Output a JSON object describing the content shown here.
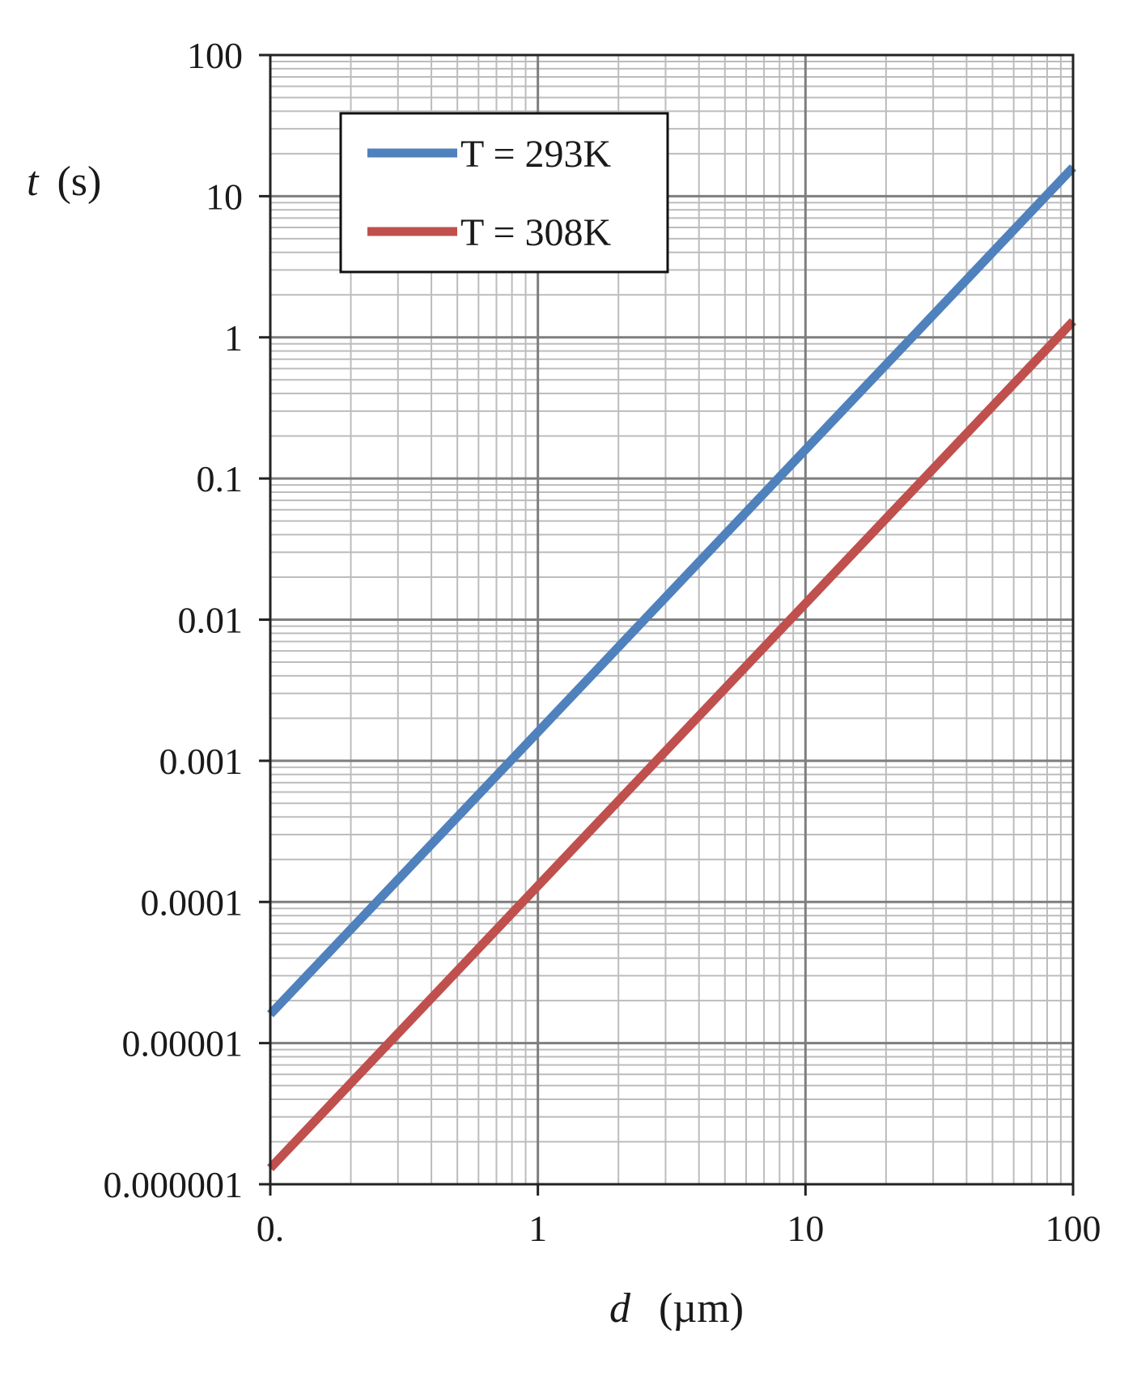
{
  "chart_data": {
    "type": "line",
    "xscale": "log",
    "yscale": "log",
    "xlim": [
      0.1,
      100
    ],
    "ylim": [
      1e-06,
      100
    ],
    "x_ticks": [
      0.1,
      1,
      10,
      100
    ],
    "x_tick_labels": [
      "0.",
      "1",
      "10",
      "100"
    ],
    "y_ticks": [
      1e-06,
      1e-05,
      0.0001,
      0.001,
      0.01,
      0.1,
      1,
      10,
      100
    ],
    "y_tick_labels": [
      "0.000001",
      "0.00001",
      "0.0001",
      "0.001",
      "0.01",
      "0.1",
      "1",
      "10",
      "100"
    ],
    "xlabel": {
      "var": "d",
      "unit": "(µm)"
    },
    "ylabel": {
      "var": "t",
      "unit": "(s)"
    },
    "grid": true,
    "minor_grid": true,
    "legend": {
      "position": "top-left"
    },
    "series": [
      {
        "name": "T = 293K",
        "color": "#4f81bd",
        "x": [
          0.1,
          1,
          10,
          100
        ],
        "y": [
          1.6e-05,
          0.0016,
          0.16,
          16
        ]
      },
      {
        "name": "T = 308K",
        "color": "#c0504d",
        "x": [
          0.1,
          1,
          10,
          100
        ],
        "y": [
          1.3e-06,
          0.00013,
          0.013,
          1.3
        ]
      }
    ]
  }
}
